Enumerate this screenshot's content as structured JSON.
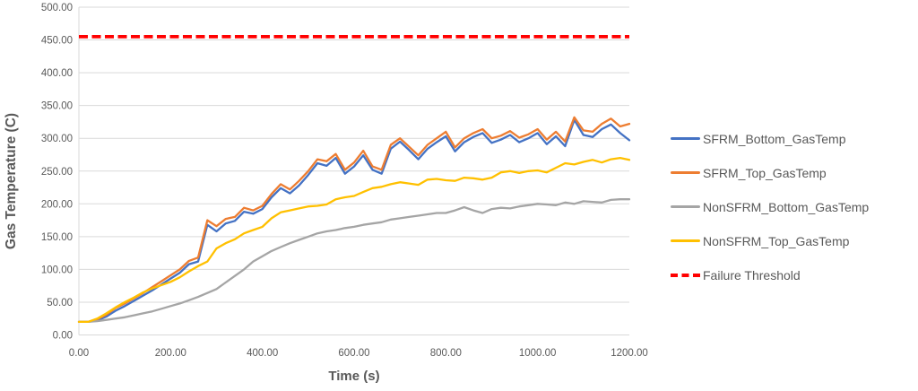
{
  "chart_data": {
    "type": "line",
    "title": "",
    "xlabel": "Time (s)",
    "ylabel": "Gas Temperature (C)",
    "xlim": [
      0,
      1200
    ],
    "ylim": [
      0,
      500
    ],
    "grid": "horizontal",
    "legend_position": "right",
    "xticks": [
      "0.00",
      "200.00",
      "400.00",
      "600.00",
      "800.00",
      "1000.00",
      "1200.00"
    ],
    "xtick_values": [
      0,
      200,
      400,
      600,
      800,
      1000,
      1200
    ],
    "yticks": [
      "0.00",
      "50.00",
      "100.00",
      "150.00",
      "200.00",
      "250.00",
      "300.00",
      "350.00",
      "400.00",
      "450.00",
      "500.00"
    ],
    "ytick_values": [
      0,
      50,
      100,
      150,
      200,
      250,
      300,
      350,
      400,
      450,
      500
    ],
    "x_step": 20,
    "series": [
      {
        "name": "SFRM_Bottom_GasTemp",
        "color": "#4472C4",
        "values": [
          20,
          20,
          22,
          28,
          37,
          44,
          52,
          60,
          68,
          77,
          86,
          95,
          108,
          112,
          168,
          158,
          170,
          174,
          188,
          185,
          192,
          210,
          224,
          216,
          228,
          244,
          262,
          258,
          270,
          246,
          257,
          274,
          252,
          246,
          284,
          295,
          282,
          268,
          284,
          294,
          303,
          280,
          294,
          302,
          308,
          293,
          298,
          305,
          294,
          300,
          308,
          291,
          303,
          288,
          328,
          305,
          302,
          314,
          321,
          308,
          297
        ]
      },
      {
        "name": "SFRM_Top_GasTemp",
        "color": "#ED7D31",
        "values": [
          20,
          20,
          24,
          31,
          41,
          48,
          56,
          64,
          73,
          82,
          91,
          100,
          113,
          118,
          175,
          166,
          177,
          180,
          194,
          190,
          197,
          215,
          230,
          222,
          235,
          250,
          268,
          265,
          276,
          252,
          263,
          281,
          257,
          252,
          290,
          300,
          287,
          274,
          290,
          300,
          310,
          286,
          300,
          308,
          314,
          300,
          304,
          311,
          301,
          306,
          314,
          298,
          310,
          295,
          332,
          312,
          310,
          322,
          330,
          318,
          322
        ]
      },
      {
        "name": "NonSFRM_Bottom_GasTemp",
        "color": "#A5A5A5",
        "values": [
          20,
          20,
          21,
          23,
          25,
          27,
          30,
          33,
          36,
          40,
          44,
          48,
          53,
          58,
          64,
          70,
          80,
          90,
          100,
          112,
          120,
          128,
          134,
          140,
          145,
          150,
          155,
          158,
          160,
          163,
          165,
          168,
          170,
          172,
          176,
          178,
          180,
          182,
          184,
          186,
          186,
          190,
          195,
          190,
          186,
          192,
          194,
          193,
          196,
          198,
          200,
          199,
          198,
          202,
          200,
          204,
          203,
          202,
          206,
          207,
          207
        ]
      },
      {
        "name": "NonSFRM_Top_GasTemp",
        "color": "#FFC000",
        "values": [
          20,
          20,
          25,
          33,
          42,
          50,
          57,
          65,
          71,
          76,
          81,
          88,
          97,
          105,
          112,
          132,
          140,
          146,
          155,
          160,
          165,
          178,
          187,
          190,
          193,
          196,
          197,
          199,
          207,
          210,
          212,
          218,
          224,
          226,
          230,
          233,
          231,
          229,
          237,
          238,
          236,
          235,
          240,
          239,
          237,
          240,
          248,
          250,
          247,
          250,
          251,
          248,
          255,
          262,
          260,
          264,
          267,
          263,
          268,
          270,
          267
        ]
      }
    ],
    "threshold": {
      "name": "Failure Threshold",
      "value": 455,
      "color": "#FF0000",
      "style": "dashed"
    },
    "colors": {
      "gridline": "#D9D9D9",
      "tick_text": "#595959",
      "axis_title_text": "#595959",
      "legend_text": "#595959",
      "background": "#FFFFFF"
    }
  }
}
